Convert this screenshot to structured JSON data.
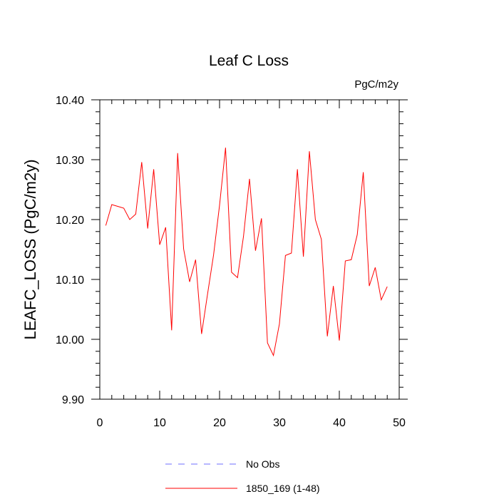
{
  "chart_data": {
    "type": "line",
    "title": "Leaf C Loss",
    "units_label": "PgC/m2y",
    "ylabel": "LEAFC_LOSS  (PgC/m2y)",
    "xlabel": "",
    "xlim": [
      0,
      50
    ],
    "ylim": [
      9.9,
      10.4
    ],
    "x_ticks": [
      0,
      10,
      20,
      30,
      40,
      50
    ],
    "x_tick_labels": [
      "0",
      "10",
      "20",
      "30",
      "40",
      "50"
    ],
    "y_ticks": [
      9.9,
      10.0,
      10.1,
      10.2,
      10.3,
      10.4
    ],
    "y_tick_labels": [
      "9.90",
      "10.00",
      "10.10",
      "10.20",
      "10.30",
      "10.40"
    ],
    "grid": false,
    "legend_position": "bottom",
    "series": [
      {
        "name": "1850_169 (1-48)",
        "color": "#ff0000",
        "style": "solid",
        "x": [
          1,
          2,
          3,
          4,
          5,
          6,
          7,
          8,
          9,
          10,
          11,
          12,
          13,
          14,
          15,
          16,
          17,
          18,
          19,
          20,
          21,
          22,
          23,
          24,
          25,
          26,
          27,
          28,
          29,
          30,
          31,
          32,
          33,
          34,
          35,
          36,
          37,
          38,
          39,
          40,
          41,
          42,
          43,
          44,
          45,
          46,
          47,
          48
        ],
        "values": [
          10.19,
          10.225,
          10.222,
          10.219,
          10.2,
          10.209,
          10.296,
          10.185,
          10.284,
          10.158,
          10.187,
          10.015,
          10.311,
          10.151,
          10.096,
          10.133,
          10.009,
          10.076,
          10.141,
          10.224,
          10.32,
          10.112,
          10.103,
          10.172,
          10.268,
          10.148,
          10.202,
          9.994,
          9.973,
          10.026,
          10.14,
          10.144,
          10.284,
          10.138,
          10.314,
          10.2,
          10.167,
          10.005,
          10.089,
          9.998,
          10.131,
          10.133,
          10.175,
          10.279,
          10.089,
          10.12,
          10.066,
          10.088
        ]
      },
      {
        "name": "No Obs",
        "color": "#6f6fff",
        "style": "dashed",
        "x": [],
        "values": []
      }
    ]
  }
}
